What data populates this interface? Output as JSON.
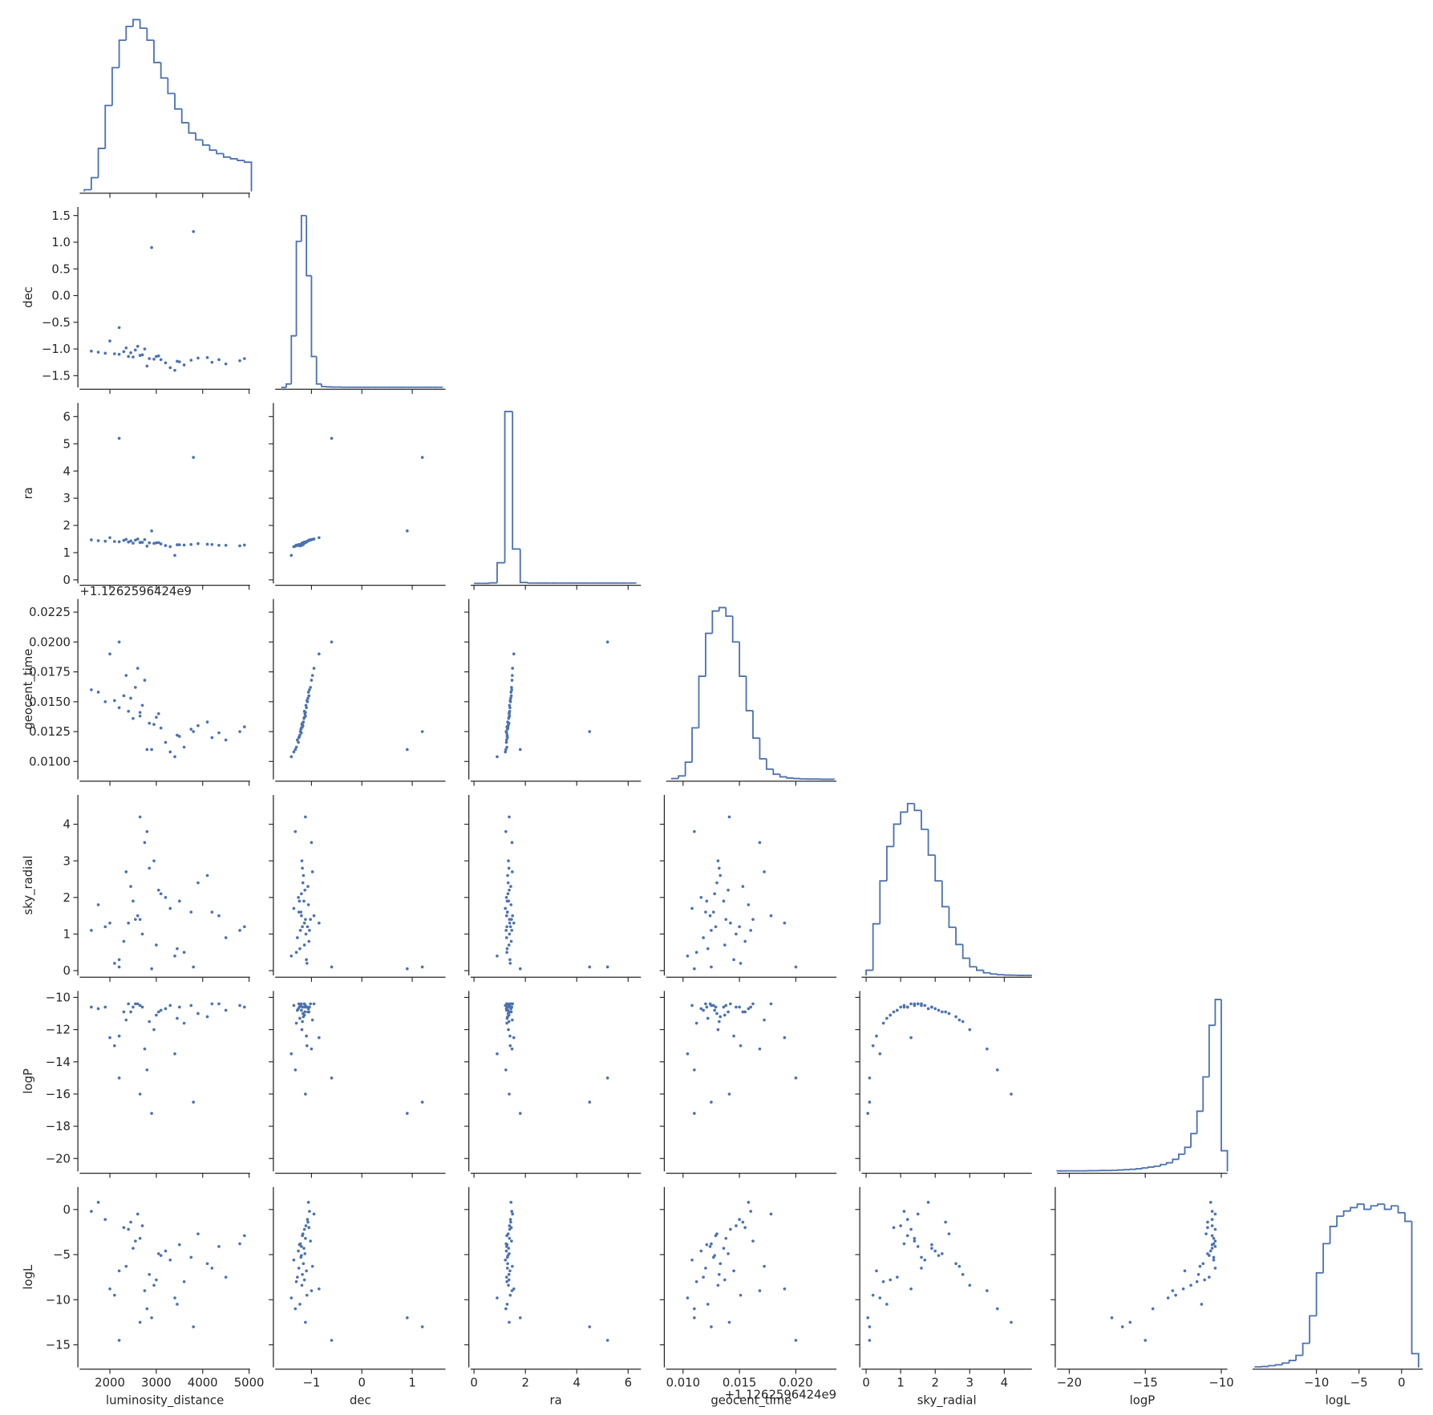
{
  "chart_data": {
    "type": "corner",
    "color": "#4c72b0",
    "hist_ylim": [
      0,
      105
    ],
    "variables": [
      {
        "name": "luminosity_distance",
        "lim": [
          1350,
          5020
        ],
        "xticks": [
          2000,
          3000,
          4000,
          5000
        ],
        "bins": [
          1450,
          1600,
          1750,
          1900,
          2050,
          2200,
          2350,
          2500,
          2650,
          2800,
          2950,
          3100,
          3250,
          3400,
          3550,
          3700,
          3850,
          4000,
          4150,
          4300,
          4450,
          4600,
          4750,
          4900,
          5050
        ],
        "counts": [
          1,
          8,
          25,
          50,
          72,
          88,
          96,
          100,
          95,
          88,
          75,
          66,
          57,
          48,
          40,
          34,
          30,
          27,
          24,
          22,
          20,
          19,
          18,
          17
        ]
      },
      {
        "name": "dec",
        "lim": [
          -1.72,
          1.66
        ],
        "xticks": [
          {
            "value": -1,
            "label": "−1"
          },
          0,
          1
        ],
        "yticks": [
          {
            "value": -1.5,
            "label": "−1.5"
          },
          {
            "value": -1,
            "label": "−1.0"
          },
          {
            "value": -0.5,
            "label": "−0.5"
          },
          {
            "value": 0,
            "label": "0.0"
          },
          0.5,
          {
            "value": 1,
            "label": "1.0"
          },
          1.5
        ],
        "bins": [
          -1.6,
          -1.5,
          -1.4,
          -1.3,
          -1.2,
          -1.1,
          -1.0,
          -0.9,
          -0.8,
          -0.7,
          -0.6,
          -0.5,
          -0.4,
          -0.3,
          -0.2,
          -0.1,
          0,
          0.1,
          0.2,
          0.3,
          0.4,
          0.5,
          0.6,
          0.7,
          0.8,
          0.9,
          1.0,
          1.1,
          1.2,
          1.3,
          1.4,
          1.5,
          1.6
        ],
        "counts": [
          0,
          2,
          30,
          85,
          100,
          65,
          18,
          2,
          0.5,
          0.3,
          0.2,
          0.2,
          0.1,
          0.1,
          0.1,
          0.1,
          0.1,
          0.1,
          0.1,
          0.1,
          0.1,
          0.1,
          0.1,
          0.1,
          0.1,
          0.1,
          0.1,
          0.1,
          0.1,
          0.1,
          0.1,
          0.1
        ]
      },
      {
        "name": "ra",
        "lim": [
          -0.13,
          6.5
        ],
        "xticks": [
          0,
          2,
          4,
          6
        ],
        "yticks": [
          0,
          1,
          2,
          3,
          4,
          5,
          6
        ],
        "bins": [
          0,
          0.3,
          0.6,
          0.9,
          1.2,
          1.5,
          1.8,
          2.1,
          2.4,
          2.7,
          3.0,
          3.3,
          3.6,
          3.9,
          4.2,
          4.5,
          4.8,
          5.1,
          5.4,
          5.7,
          6.0,
          6.3
        ],
        "counts": [
          0,
          0,
          0.3,
          12,
          100,
          20,
          0.5,
          0.2,
          0.2,
          0.2,
          0.2,
          0.2,
          0.2,
          0.2,
          0.2,
          0.2,
          0.2,
          0.2,
          0.2,
          0.2,
          0.2
        ]
      },
      {
        "name": "geocent_time",
        "lim": [
          0.0085,
          0.0236
        ],
        "offset_label": "+1.1262596424e9",
        "xticks": [
          {
            "value": 0.01,
            "label": "0.010"
          },
          0.015,
          {
            "value": 0.02,
            "label": "0.020"
          }
        ],
        "yticks": [
          {
            "value": 0.01,
            "label": "0.0100"
          },
          0.0125,
          {
            "value": 0.015,
            "label": "0.0150"
          },
          0.0175,
          {
            "value": 0.02,
            "label": "0.0200"
          },
          0.0225
        ],
        "bins": [
          0.009,
          0.0096,
          0.0102,
          0.0108,
          0.0114,
          0.012,
          0.0126,
          0.0132,
          0.0138,
          0.0144,
          0.015,
          0.0156,
          0.0162,
          0.0168,
          0.0174,
          0.018,
          0.0186,
          0.0192,
          0.0198,
          0.0204,
          0.021,
          0.0216,
          0.0222,
          0.0228,
          0.0234
        ],
        "counts": [
          0.5,
          2,
          10,
          30,
          60,
          85,
          98,
          100,
          95,
          80,
          60,
          40,
          24,
          12,
          6,
          3,
          1.5,
          0.8,
          0.5,
          0.3,
          0.2,
          0.2,
          0.1,
          0.1
        ]
      },
      {
        "name": "sky_radial",
        "lim": [
          -0.13,
          4.8
        ],
        "xticks": [
          0,
          1,
          2,
          3,
          4
        ],
        "yticks": [
          0,
          1,
          2,
          3,
          4
        ],
        "bins": [
          0,
          0.2,
          0.4,
          0.6,
          0.8,
          1.0,
          1.2,
          1.4,
          1.6,
          1.8,
          2.0,
          2.2,
          2.4,
          2.6,
          2.8,
          3.0,
          3.2,
          3.4,
          3.6,
          3.8,
          4.0,
          4.2,
          4.4,
          4.6,
          4.8
        ],
        "counts": [
          3,
          30,
          55,
          75,
          88,
          95,
          100,
          96,
          85,
          70,
          55,
          40,
          28,
          18,
          10,
          5,
          3,
          1.5,
          0.8,
          0.4,
          0.2,
          0.1,
          0,
          0
        ]
      },
      {
        "name": "logP",
        "lim": [
          -20.8,
          -9.6
        ],
        "xticks": [
          {
            "value": -20,
            "label": "−20"
          },
          {
            "value": -15,
            "label": "−15"
          },
          {
            "value": -10,
            "label": "−10"
          }
        ],
        "yticks": [
          {
            "value": -20,
            "label": "−20"
          },
          {
            "value": -18,
            "label": "−18"
          },
          {
            "value": -16,
            "label": "−16"
          },
          {
            "value": -14,
            "label": "−14"
          },
          {
            "value": -12,
            "label": "−12"
          },
          {
            "value": -10,
            "label": "−10"
          }
        ],
        "bins": [
          -20.8,
          -20.4,
          -20.0,
          -19.6,
          -19.2,
          -18.8,
          -18.4,
          -18.0,
          -17.6,
          -17.2,
          -16.8,
          -16.4,
          -16.0,
          -15.6,
          -15.2,
          -14.8,
          -14.4,
          -14.0,
          -13.6,
          -13.2,
          -12.8,
          -12.4,
          -12.0,
          -11.6,
          -11.2,
          -10.8,
          -10.4,
          -10.0,
          -9.6
        ],
        "counts": [
          0.3,
          0.3,
          0.3,
          0.3,
          0.3,
          0.4,
          0.4,
          0.5,
          0.5,
          0.6,
          0.8,
          1,
          1.2,
          1.5,
          2,
          2.5,
          3,
          4,
          5,
          7,
          10,
          14,
          22,
          35,
          55,
          85,
          100,
          12
        ]
      },
      {
        "name": "logL",
        "lim": [
          -17.5,
          2.5
        ],
        "xticks": [
          {
            "value": -10,
            "label": "−10"
          },
          {
            "value": -5,
            "label": "−5"
          },
          0
        ],
        "yticks": [
          {
            "value": -15,
            "label": "−15"
          },
          {
            "value": -10,
            "label": "−10"
          },
          {
            "value": -5,
            "label": "−5"
          },
          0
        ],
        "bins": [
          -17.2,
          -16.4,
          -15.6,
          -14.8,
          -14.0,
          -13.2,
          -12.4,
          -11.6,
          -10.8,
          -10.0,
          -9.2,
          -8.4,
          -7.6,
          -6.8,
          -6.0,
          -5.2,
          -4.4,
          -3.6,
          -2.8,
          -2.0,
          -1.2,
          -0.4,
          0.4,
          1.2,
          2.0
        ],
        "counts": [
          0.3,
          0.5,
          1,
          1.5,
          2.5,
          4,
          7,
          14,
          30,
          55,
          72,
          82,
          88,
          91,
          93,
          95,
          92,
          94,
          95,
          92,
          94,
          90,
          85,
          8
        ]
      }
    ],
    "samples": [
      [
        2650,
        -1.12,
        1.38,
        0.0138,
        1.4,
        -10.5,
        -3.2
      ],
      [
        3100,
        -1.2,
        1.32,
        0.0128,
        2.1,
        -10.8,
        -5.1
      ],
      [
        2300,
        -1.05,
        1.45,
        0.0155,
        0.8,
        -10.9,
        -2.0
      ],
      [
        4200,
        -1.25,
        1.3,
        0.012,
        1.6,
        -10.4,
        -6.5
      ],
      [
        2850,
        -1.18,
        1.36,
        0.0132,
        2.8,
        -11.5,
        -7.2
      ],
      [
        1900,
        -1.08,
        1.42,
        0.015,
        1.2,
        -10.6,
        -1.1
      ],
      [
        3600,
        -1.3,
        1.28,
        0.0112,
        0.5,
        -11.6,
        -8.0
      ],
      [
        2500,
        -1.15,
        1.35,
        0.0136,
        1.9,
        -10.6,
        -4.3
      ],
      [
        4800,
        -1.22,
        1.25,
        0.0125,
        1.1,
        -10.5,
        -3.8
      ],
      [
        2750,
        -1.0,
        1.48,
        0.0168,
        3.5,
        -13.2,
        -9.0
      ],
      [
        3300,
        -1.35,
        1.22,
        0.0108,
        1.7,
        -10.5,
        -5.6
      ],
      [
        2200,
        -1.1,
        1.4,
        0.0145,
        0.3,
        -12.4,
        -6.8
      ],
      [
        3900,
        -1.17,
        1.33,
        0.013,
        2.4,
        -11.0,
        -2.7
      ],
      [
        2600,
        -0.95,
        1.5,
        0.0178,
        1.5,
        -10.4,
        -0.5
      ],
      [
        3050,
        -1.13,
        1.37,
        0.014,
        2.2,
        -10.9,
        -4.9
      ],
      [
        4500,
        -1.28,
        1.27,
        0.0118,
        0.9,
        -10.8,
        -7.5
      ],
      [
        2400,
        -1.14,
        1.39,
        0.0142,
        1.3,
        -10.4,
        -2.2
      ],
      [
        2950,
        -1.19,
        1.34,
        0.0131,
        3.0,
        -12.0,
        -8.4
      ],
      [
        1750,
        -1.06,
        1.44,
        0.0158,
        1.8,
        -10.7,
        0.8
      ],
      [
        3450,
        -1.23,
        1.29,
        0.0122,
        0.6,
        -11.3,
        -10.5
      ],
      [
        2700,
        -1.11,
        1.38,
        0.0147,
        1.0,
        -10.6,
        -1.8
      ],
      [
        4100,
        -1.16,
        1.31,
        0.0133,
        2.6,
        -11.2,
        -6.0
      ],
      [
        2550,
        -1.02,
        1.46,
        0.0162,
        1.4,
        -10.4,
        -3.5
      ],
      [
        3200,
        -1.26,
        1.26,
        0.0116,
        2.0,
        -10.7,
        -4.6
      ],
      [
        2100,
        -1.09,
        1.41,
        0.0151,
        0.2,
        -13.0,
        -9.5
      ],
      [
        3750,
        -1.21,
        1.3,
        0.0127,
        1.6,
        -10.5,
        -5.3
      ],
      [
        2800,
        -1.32,
        1.24,
        0.011,
        3.8,
        -14.5,
        -11.0
      ],
      [
        4900,
        -1.18,
        1.28,
        0.0129,
        1.2,
        -10.6,
        -2.9
      ],
      [
        2450,
        -1.07,
        1.43,
        0.0153,
        2.3,
        -10.9,
        -1.4
      ],
      [
        3000,
        -1.14,
        1.36,
        0.0137,
        0.7,
        -11.1,
        -7.8
      ],
      [
        3500,
        -1.24,
        1.29,
        0.0121,
        1.9,
        -10.6,
        -3.9
      ],
      [
        2350,
        -0.98,
        1.49,
        0.0172,
        2.7,
        -11.4,
        -6.3
      ],
      [
        4350,
        -1.2,
        1.27,
        0.0124,
        1.5,
        -10.4,
        -4.1
      ],
      [
        2650,
        -1.12,
        1.37,
        0.0141,
        4.2,
        -16.0,
        -12.5
      ],
      [
        1600,
        -1.04,
        1.47,
        0.016,
        1.1,
        -10.6,
        -0.2
      ],
      [
        3800,
        1.2,
        4.5,
        0.0125,
        0.1,
        -16.5,
        -13.0
      ],
      [
        2900,
        0.9,
        1.8,
        0.011,
        0.05,
        -17.2,
        -12.0
      ],
      [
        2200,
        -0.6,
        5.2,
        0.02,
        0.1,
        -15.0,
        -14.5
      ],
      [
        3400,
        -1.4,
        0.9,
        0.0104,
        0.4,
        -13.5,
        -9.8
      ],
      [
        2000,
        -0.85,
        1.55,
        0.019,
        1.3,
        -12.5,
        -8.8
      ]
    ]
  }
}
